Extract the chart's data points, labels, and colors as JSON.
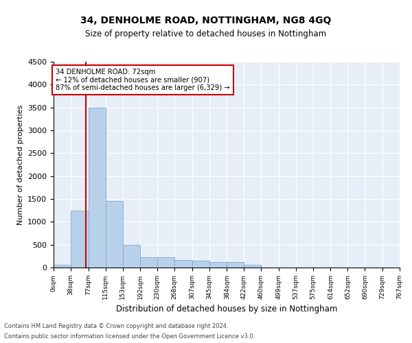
{
  "title": "34, DENHOLME ROAD, NOTTINGHAM, NG8 4GQ",
  "subtitle": "Size of property relative to detached houses in Nottingham",
  "xlabel": "Distribution of detached houses by size in Nottingham",
  "ylabel": "Number of detached properties",
  "bar_color": "#b8d0ea",
  "bar_edge_color": "#7aadd4",
  "background_color": "#e8eef8",
  "grid_color": "#ffffff",
  "annotation_box_color": "#cc0000",
  "annotation_line_color": "#cc0000",
  "property_line_x": 72,
  "annotation_text_line1": "34 DENHOLME ROAD: 72sqm",
  "annotation_text_line2": "← 12% of detached houses are smaller (907)",
  "annotation_text_line3": "87% of semi-detached houses are larger (6,329) →",
  "footer_line1": "Contains HM Land Registry data © Crown copyright and database right 2024.",
  "footer_line2": "Contains public sector information licensed under the Open Government Licence v3.0.",
  "bin_edges": [
    0,
    38,
    77,
    115,
    153,
    192,
    230,
    268,
    307,
    345,
    384,
    422,
    460,
    499,
    537,
    575,
    614,
    652,
    690,
    729,
    767
  ],
  "bin_counts": [
    65,
    1250,
    3500,
    1450,
    500,
    230,
    220,
    160,
    155,
    115,
    115,
    55,
    4,
    0,
    0,
    0,
    0,
    0,
    0,
    0
  ],
  "ylim": [
    0,
    4500
  ],
  "yticks": [
    0,
    500,
    1000,
    1500,
    2000,
    2500,
    3000,
    3500,
    4000,
    4500
  ]
}
